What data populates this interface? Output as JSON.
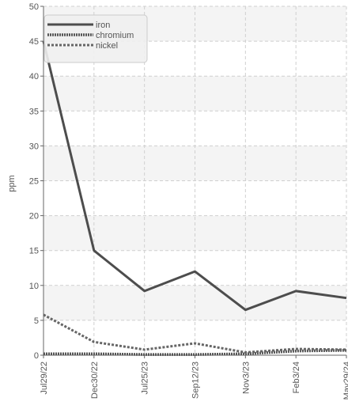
{
  "chart_data": {
    "type": "line",
    "title": "",
    "xlabel": "",
    "ylabel": "ppm",
    "ylim": [
      0,
      50
    ],
    "yticks": [
      0,
      5,
      10,
      15,
      20,
      25,
      30,
      35,
      40,
      45,
      50
    ],
    "categories": [
      "Jul29/22",
      "Dec30/22",
      "Jul25/23",
      "Sep12/23",
      "Nov3/23",
      "Feb3/24",
      "May29/24"
    ],
    "series": [
      {
        "name": "iron",
        "values": [
          45,
          15,
          9.2,
          12,
          6.5,
          9.2,
          8.2
        ],
        "color": "#4d4d4d",
        "style": "solid"
      },
      {
        "name": "chromium",
        "values": [
          0.2,
          0.2,
          0.1,
          0.1,
          0.2,
          0.6,
          0.7
        ],
        "color": "#555555",
        "style": "dense-dotted"
      },
      {
        "name": "nickel",
        "values": [
          5.8,
          1.9,
          0.8,
          1.7,
          0.4,
          0.9,
          0.8
        ],
        "color": "#666666",
        "style": "dashed"
      }
    ],
    "grid": true,
    "legend_position": "top-left"
  }
}
